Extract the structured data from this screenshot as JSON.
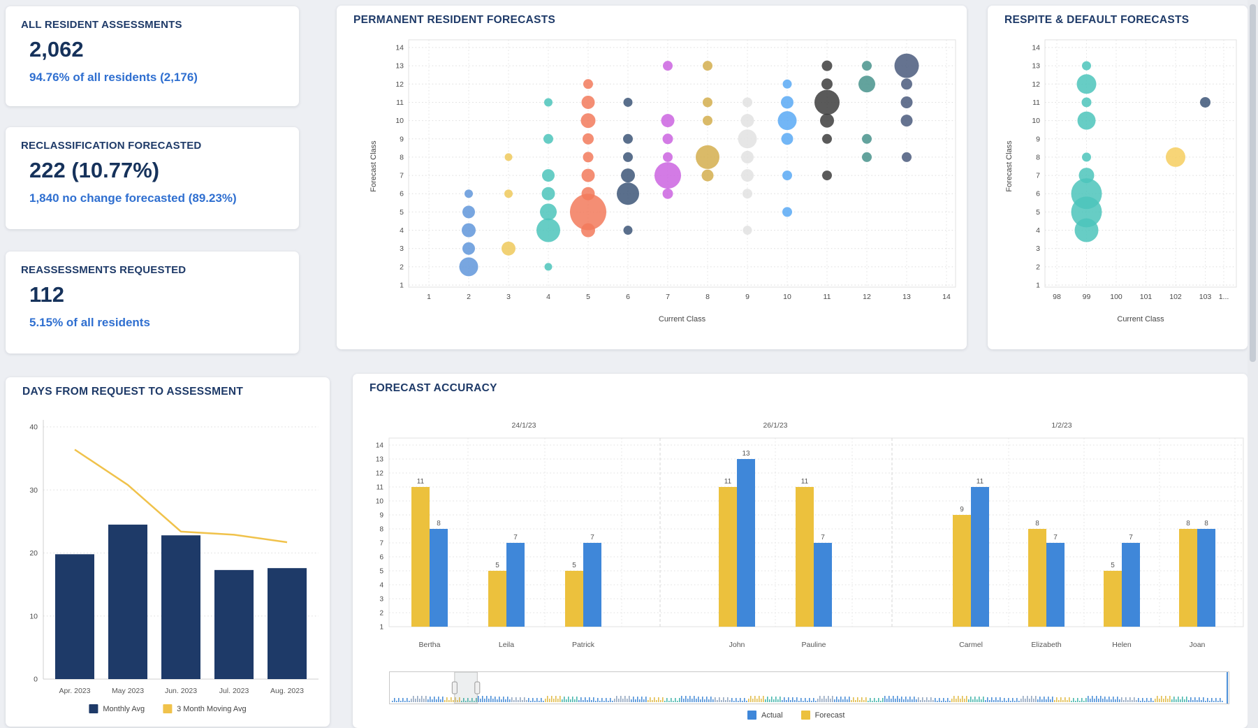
{
  "page": {
    "background": "#edeff3",
    "accent_navy": "#1e3a68",
    "accent_blue": "#2f6fd0"
  },
  "kpis": [
    {
      "title": "ALL RESIDENT ASSESSMENTS",
      "value": "2,062",
      "subtitle": "94.76% of all residents (2,176)"
    },
    {
      "title": "RECLASSIFICATION FORECASTED",
      "value": "222 (10.77%)",
      "subtitle": "1,840 no change forecasted (89.23%)"
    },
    {
      "title": "REASSESSMENTS REQUESTED",
      "value": "112",
      "subtitle": "5.15% of all residents"
    }
  ],
  "chart_data": [
    {
      "id": "permanent",
      "type": "scatter",
      "title": "PERMANENT RESIDENT FORECASTS",
      "xlabel": "Current Class",
      "ylabel": "Forecast Class",
      "x_ticks": [
        "1",
        "2",
        "3",
        "4",
        "5",
        "6",
        "7",
        "8",
        "9",
        "10",
        "11",
        "12",
        "13",
        "14"
      ],
      "y_ticks": [
        1,
        2,
        3,
        4,
        5,
        6,
        7,
        8,
        9,
        10,
        11,
        12,
        13,
        14
      ],
      "grid": "dotted",
      "legend_position": "none",
      "columns": [
        {
          "x": 2,
          "tick": 1,
          "color": "#6097db",
          "bubbles": [
            [
              6,
              6
            ],
            [
              5,
              9
            ],
            [
              4,
              10
            ],
            [
              3,
              9
            ],
            [
              2,
              13.5
            ]
          ]
        },
        {
          "x": 3,
          "tick": 2,
          "color": "#efc95c",
          "bubbles": [
            [
              8,
              5.5
            ],
            [
              6,
              6
            ],
            [
              3,
              10
            ]
          ]
        },
        {
          "x": 4,
          "tick": 3,
          "color": "#4cc4bb",
          "bubbles": [
            [
              11,
              6
            ],
            [
              9,
              7
            ],
            [
              7,
              9
            ],
            [
              6,
              9.5
            ],
            [
              5,
              12
            ],
            [
              4,
              17
            ],
            [
              2,
              5.5
            ]
          ]
        },
        {
          "x": 5,
          "tick": 4,
          "color": "#f27a5c",
          "bubbles": [
            [
              12,
              7
            ],
            [
              11,
              9.5
            ],
            [
              10,
              10.5
            ],
            [
              9,
              8
            ],
            [
              8,
              7.5
            ],
            [
              7,
              9.5
            ],
            [
              6,
              9.5
            ],
            [
              5,
              26
            ],
            [
              4,
              10
            ]
          ]
        },
        {
          "x": 6,
          "tick": 5,
          "color": "#3d5678",
          "bubbles": [
            [
              11,
              6.5
            ],
            [
              9,
              7
            ],
            [
              8,
              7
            ],
            [
              7,
              10
            ],
            [
              6,
              16
            ],
            [
              4,
              6.5
            ]
          ]
        },
        {
          "x": 7,
          "tick": 6,
          "color": "#cb64e0",
          "bubbles": [
            [
              13,
              7
            ],
            [
              10,
              9.5
            ],
            [
              9,
              7.5
            ],
            [
              8,
              7
            ],
            [
              7,
              19
            ],
            [
              6,
              7.5
            ]
          ]
        },
        {
          "x": 8,
          "tick": 7,
          "color": "#d3ae4e",
          "bubbles": [
            [
              13,
              7
            ],
            [
              11,
              7
            ],
            [
              10,
              7
            ],
            [
              8,
              17
            ],
            [
              7,
              8.5
            ]
          ]
        },
        {
          "x": 9,
          "tick": 8,
          "color": "#e2e2e2",
          "bubbles": [
            [
              11,
              7
            ],
            [
              10,
              9.5
            ],
            [
              9,
              13.5
            ],
            [
              8,
              9
            ],
            [
              7,
              9
            ],
            [
              6,
              7
            ],
            [
              4,
              6.5
            ]
          ]
        },
        {
          "x": 10,
          "tick": 9,
          "color": "#59a9f5",
          "bubbles": [
            [
              12,
              6.5
            ],
            [
              11,
              9
            ],
            [
              10,
              13.5
            ],
            [
              9,
              8.5
            ],
            [
              7,
              7
            ],
            [
              5,
              7
            ]
          ]
        },
        {
          "x": 11,
          "tick": 10,
          "color": "#3d3d3d",
          "bubbles": [
            [
              13,
              7.5
            ],
            [
              12,
              8
            ],
            [
              11,
              18
            ],
            [
              10,
              10
            ],
            [
              9,
              7
            ],
            [
              7,
              7
            ]
          ]
        },
        {
          "x": 12,
          "tick": 11,
          "color": "#48938c",
          "bubbles": [
            [
              13,
              7
            ],
            [
              12,
              12
            ],
            [
              9,
              7
            ],
            [
              8,
              7
            ]
          ]
        },
        {
          "x": 13,
          "tick": 12,
          "color": "#4a5b7d",
          "bubbles": [
            [
              13,
              17.5
            ],
            [
              12,
              8
            ],
            [
              11,
              8.5
            ],
            [
              10,
              8.5
            ],
            [
              8,
              7
            ]
          ]
        }
      ]
    },
    {
      "id": "respite",
      "type": "scatter",
      "title": "RESPITE & DEFAULT FORECASTS",
      "xlabel": "Current Class",
      "ylabel": "Forecast Class",
      "x_ticks": [
        "98",
        "99",
        "100",
        "101",
        "102",
        "103",
        "1..."
      ],
      "y_ticks": [
        1,
        2,
        3,
        4,
        5,
        6,
        7,
        8,
        9,
        10,
        11,
        12,
        13,
        14
      ],
      "grid": "dotted",
      "legend_position": "none",
      "columns": [
        {
          "x": 99,
          "tick": 1,
          "color": "#4cc4bb",
          "bubbles": [
            [
              13,
              6.5
            ],
            [
              12,
              14
            ],
            [
              11,
              7
            ],
            [
              10,
              13
            ],
            [
              8,
              6.5
            ],
            [
              7,
              11
            ],
            [
              6,
              22
            ],
            [
              5,
              22
            ],
            [
              4,
              17
            ]
          ]
        },
        {
          "x": 102,
          "tick": 4,
          "color": "#f6ce5f",
          "bubbles": [
            [
              8,
              14
            ]
          ]
        },
        {
          "x": 103,
          "tick": 5,
          "color": "#3d5678",
          "bubbles": [
            [
              11,
              7.5
            ]
          ]
        }
      ]
    },
    {
      "id": "days",
      "type": "bar",
      "title": "DAYS FROM REQUEST TO ASSESSMENT",
      "categories": [
        "Apr. 2023",
        "May 2023",
        "Jun. 2023",
        "Jul. 2023",
        "Aug. 2023"
      ],
      "series": [
        {
          "name": "Monthly Avg",
          "kind": "bar",
          "color": "#1e3a68",
          "values": [
            19.8,
            24.5,
            22.8,
            17.3,
            17.6
          ]
        },
        {
          "name": "3 Month Moving Avg",
          "kind": "line",
          "color": "#f0c24b",
          "values": [
            36.4,
            30.8,
            23.4,
            22.9,
            21.7
          ]
        }
      ],
      "y_ticks": [
        0,
        10,
        20,
        30,
        40
      ],
      "ylim": [
        0,
        40
      ],
      "grid": "dotted",
      "legend_position": "bottom"
    },
    {
      "id": "forecast",
      "type": "bar",
      "title": "FORECAST ACCURACY",
      "ylim": [
        1,
        14
      ],
      "y_ticks": [
        1,
        2,
        3,
        4,
        5,
        6,
        7,
        8,
        9,
        10,
        11,
        12,
        13,
        14
      ],
      "grid": "dotted",
      "legend_position": "bottom",
      "groups": [
        {
          "date": "24/1/23",
          "people": [
            {
              "name": "Bertha",
              "forecast": 11,
              "actual": 8
            },
            {
              "name": "Leila",
              "forecast": 5,
              "actual": 7
            },
            {
              "name": "Patrick",
              "forecast": 5,
              "actual": 7
            }
          ]
        },
        {
          "date": "26/1/23",
          "people": [
            {
              "name": "John",
              "forecast": 11,
              "actual": 13
            },
            {
              "name": "Pauline",
              "forecast": 11,
              "actual": 7
            }
          ]
        },
        {
          "date": "1/2/23",
          "people": [
            {
              "name": "Carmel",
              "forecast": 9,
              "actual": 11
            },
            {
              "name": "Elizabeth",
              "forecast": 8,
              "actual": 7
            },
            {
              "name": "Helen",
              "forecast": 5,
              "actual": 7
            },
            {
              "name": "Joan",
              "forecast": 8,
              "actual": 8
            }
          ]
        }
      ],
      "legend": [
        {
          "label": "Actual",
          "color": "#3f87d9"
        },
        {
          "label": "Forecast",
          "color": "#ecc13d"
        }
      ]
    }
  ],
  "navigator": {
    "brush_start_pct": 7.8,
    "brush_end_pct": 10.5
  }
}
